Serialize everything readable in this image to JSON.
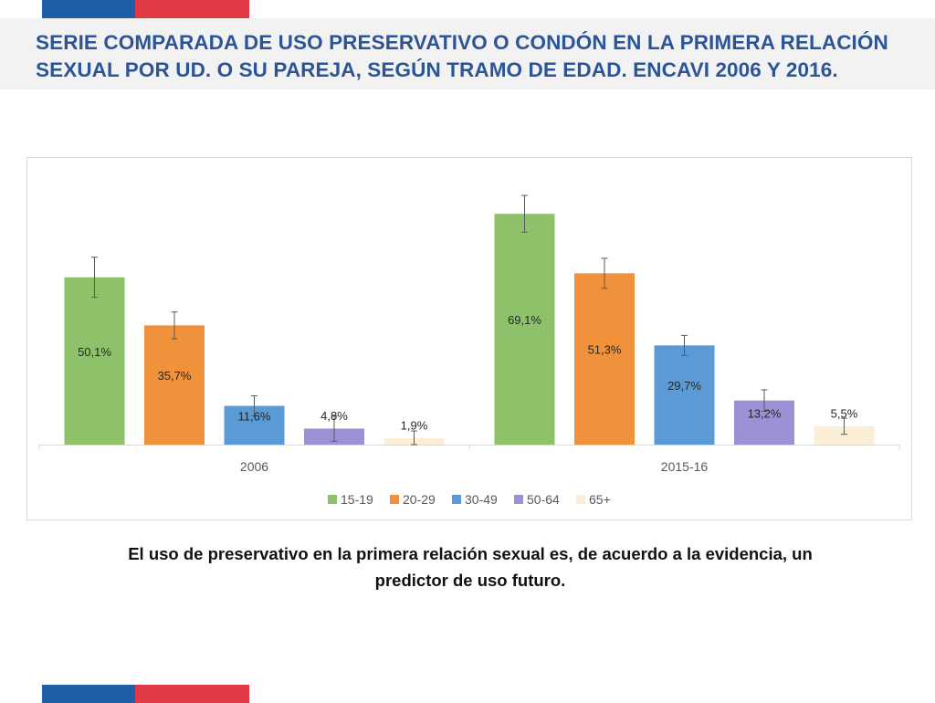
{
  "header": {
    "title": "SERIE COMPARADA DE USO PRESERVATIVO O CONDÓN EN LA PRIMERA RELACIÓN SEXUAL POR UD. O SU PAREJA, SEGÚN TRAMO DE EDAD. ENCAVI 2006 Y 2016."
  },
  "caption": "El uso de preservativo en la primera relación sexual es, de acuerdo a la evidencia, un predictor de uso futuro.",
  "colors": {
    "brand_blue": "#1f5ea8",
    "brand_red": "#e03a45",
    "title_blue": "#2b5597"
  },
  "chart_data": {
    "type": "bar",
    "categories": [
      "2006",
      "2015-16"
    ],
    "series": [
      {
        "name": "15-19",
        "color": "#8dc26b",
        "values": [
          50.1,
          69.1
        ],
        "labels": [
          "50,1%",
          "69,1%"
        ],
        "error": [
          6,
          5.5
        ]
      },
      {
        "name": "20-29",
        "color": "#f0923b",
        "values": [
          35.7,
          51.3
        ],
        "labels": [
          "35,7%",
          "51,3%"
        ],
        "error": [
          4,
          4.5
        ]
      },
      {
        "name": "30-49",
        "color": "#5b9bd5",
        "values": [
          11.6,
          29.7
        ],
        "labels": [
          "11,6%",
          "29,7%"
        ],
        "error": [
          3,
          3
        ]
      },
      {
        "name": "50-64",
        "color": "#9e90d4",
        "values": [
          4.8,
          13.2
        ],
        "labels": [
          "4,8%",
          "13,2%"
        ],
        "error": [
          3.8,
          3.2
        ]
      },
      {
        "name": "65+",
        "color": "#fbeed6",
        "values": [
          1.9,
          5.5
        ],
        "labels": [
          "1,9%",
          "5,5%"
        ],
        "error": [
          2.2,
          2.4
        ]
      }
    ],
    "ylim": [
      0,
      82
    ],
    "grid": false,
    "legend_position": "bottom-center",
    "title": "",
    "xlabel": "",
    "ylabel": ""
  }
}
